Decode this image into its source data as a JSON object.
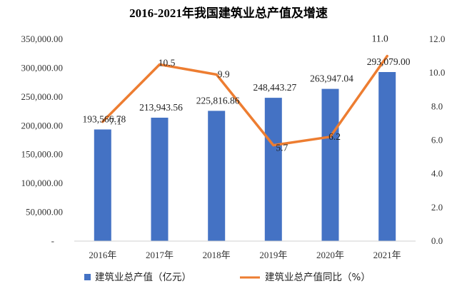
{
  "chart_data": {
    "type": "bar",
    "title": "2016-2021年我国建筑业总产值及增速",
    "categories": [
      "2016年",
      "2017年",
      "2018年",
      "2019年",
      "2020年",
      "2021年"
    ],
    "series": [
      {
        "name": "建筑业总产值（亿元）",
        "type": "bar",
        "axis": "left",
        "color": "#4472C4",
        "values": [
          193566.78,
          213943.56,
          225816.86,
          248443.27,
          263947.04,
          293079.0
        ],
        "value_labels": [
          "193,566.78",
          "213,943.56",
          "225,816.86",
          "248,443.27",
          "263,947.04",
          "293,079.00"
        ]
      },
      {
        "name": "建筑业总产值同比（%）",
        "type": "line",
        "axis": "right",
        "color": "#ED7D31",
        "values": [
          7.1,
          10.5,
          9.9,
          5.7,
          6.2,
          11.0
        ],
        "value_labels": [
          "7.1",
          "10.5",
          "9.9",
          "5.7",
          "6.2",
          "11.0"
        ]
      }
    ],
    "y_left": {
      "ylim": [
        0,
        350000
      ],
      "ticks": [
        0,
        50000,
        100000,
        150000,
        200000,
        250000,
        300000,
        350000
      ],
      "tick_labels": [
        "-",
        "50,000.00",
        "100,000.00",
        "150,000.00",
        "200,000.00",
        "250,000.00",
        "300,000.00",
        "350,000.00"
      ]
    },
    "y_right": {
      "ylim": [
        0,
        12
      ],
      "ticks": [
        0,
        2,
        4,
        6,
        8,
        10,
        12
      ],
      "tick_labels": [
        "0.0",
        "2.0",
        "4.0",
        "6.0",
        "8.0",
        "10.0",
        "12.0"
      ]
    },
    "grid": false,
    "legend_position": "bottom"
  }
}
